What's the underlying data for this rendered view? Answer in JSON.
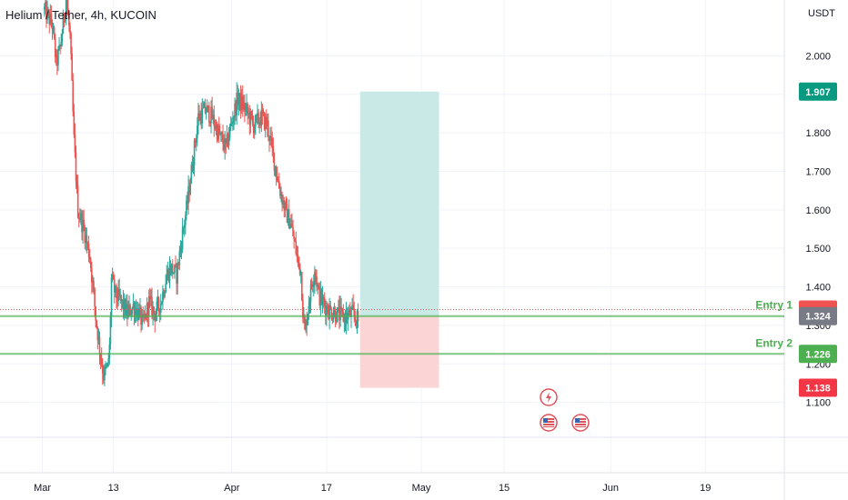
{
  "header": {
    "title": "Helium / Tether, 4h, KUCOIN",
    "currency": "USDT"
  },
  "colors": {
    "up": "#26a69a",
    "down": "#ef5350",
    "entry_line": "#4caf50",
    "target_tag": "#089981",
    "stop_tag": "#f23645",
    "price_tag": "#787b86",
    "profit_zone": "#c8e9e6",
    "loss_zone": "#fbd5d5"
  },
  "annotations": {
    "entry1_label": "Entry 1",
    "entry2_label": "Entry 2"
  },
  "price_tags": {
    "target": "1.907",
    "current": "1.324",
    "entry2": "1.226",
    "stop": "1.138"
  },
  "events": {
    "icon1": "lightning-icon",
    "icon2": "us-flag-icon",
    "icon3": "us-flag-icon"
  },
  "chart_data": {
    "type": "candlestick",
    "symbol": "HNTUSDT",
    "interval": "4h",
    "exchange": "KUCOIN",
    "ylim": [
      1.0,
      2.1
    ],
    "yticks": [
      1.1,
      1.2,
      1.3,
      1.4,
      1.5,
      1.6,
      1.7,
      1.8,
      1.9,
      2.0
    ],
    "ytick_labels": [
      "1.100",
      "1.200",
      "1.300",
      "1.400",
      "1.500",
      "1.600",
      "1.700",
      "1.800",
      "1.900",
      "2.000"
    ],
    "xticks": [
      {
        "label": "Mar",
        "index": -2
      },
      {
        "label": "13",
        "index": 70
      },
      {
        "label": "Apr",
        "index": 190
      },
      {
        "label": "17",
        "index": 286
      },
      {
        "label": "May",
        "index": 382
      },
      {
        "label": "15",
        "index": 466
      },
      {
        "label": "Jun",
        "index": 574
      },
      {
        "label": "19",
        "index": 670
      }
    ],
    "x_span": [
      -45,
      750
    ],
    "waypoints": [
      [
        0,
        2.12
      ],
      [
        8,
        2.08
      ],
      [
        12,
        1.98
      ],
      [
        16,
        2.02
      ],
      [
        22,
        2.15
      ],
      [
        26,
        2.05
      ],
      [
        30,
        1.78
      ],
      [
        34,
        1.6
      ],
      [
        40,
        1.55
      ],
      [
        46,
        1.48
      ],
      [
        50,
        1.38
      ],
      [
        52,
        1.32
      ],
      [
        56,
        1.24
      ],
      [
        60,
        1.17
      ],
      [
        64,
        1.19
      ],
      [
        66,
        1.24
      ],
      [
        68,
        1.42
      ],
      [
        72,
        1.38
      ],
      [
        78,
        1.36
      ],
      [
        84,
        1.33
      ],
      [
        90,
        1.35
      ],
      [
        96,
        1.33
      ],
      [
        100,
        1.3
      ],
      [
        106,
        1.36
      ],
      [
        112,
        1.33
      ],
      [
        118,
        1.36
      ],
      [
        124,
        1.43
      ],
      [
        128,
        1.45
      ],
      [
        134,
        1.43
      ],
      [
        140,
        1.54
      ],
      [
        144,
        1.6
      ],
      [
        150,
        1.72
      ],
      [
        156,
        1.84
      ],
      [
        164,
        1.86
      ],
      [
        170,
        1.84
      ],
      [
        176,
        1.8
      ],
      [
        184,
        1.76
      ],
      [
        190,
        1.83
      ],
      [
        196,
        1.89
      ],
      [
        204,
        1.86
      ],
      [
        212,
        1.82
      ],
      [
        220,
        1.84
      ],
      [
        226,
        1.82
      ],
      [
        232,
        1.74
      ],
      [
        238,
        1.66
      ],
      [
        244,
        1.6
      ],
      [
        250,
        1.56
      ],
      [
        256,
        1.48
      ],
      [
        260,
        1.44
      ],
      [
        262,
        1.34
      ],
      [
        264,
        1.28
      ],
      [
        268,
        1.36
      ],
      [
        274,
        1.45
      ],
      [
        278,
        1.38
      ],
      [
        282,
        1.36
      ],
      [
        288,
        1.34
      ],
      [
        296,
        1.33
      ],
      [
        304,
        1.32
      ],
      [
        312,
        1.33
      ],
      [
        318,
        1.31
      ]
    ],
    "entries": [
      {
        "name": "Entry 1",
        "price": 1.324
      },
      {
        "name": "Entry 2",
        "price": 1.226
      }
    ],
    "current_price": 1.324,
    "last_price_line": 1.341,
    "target": 1.907,
    "stop": 1.138,
    "position_box": {
      "start_index": 320,
      "end_index": 400,
      "entry": 1.324,
      "target": 1.907,
      "stop": 1.138
    }
  }
}
